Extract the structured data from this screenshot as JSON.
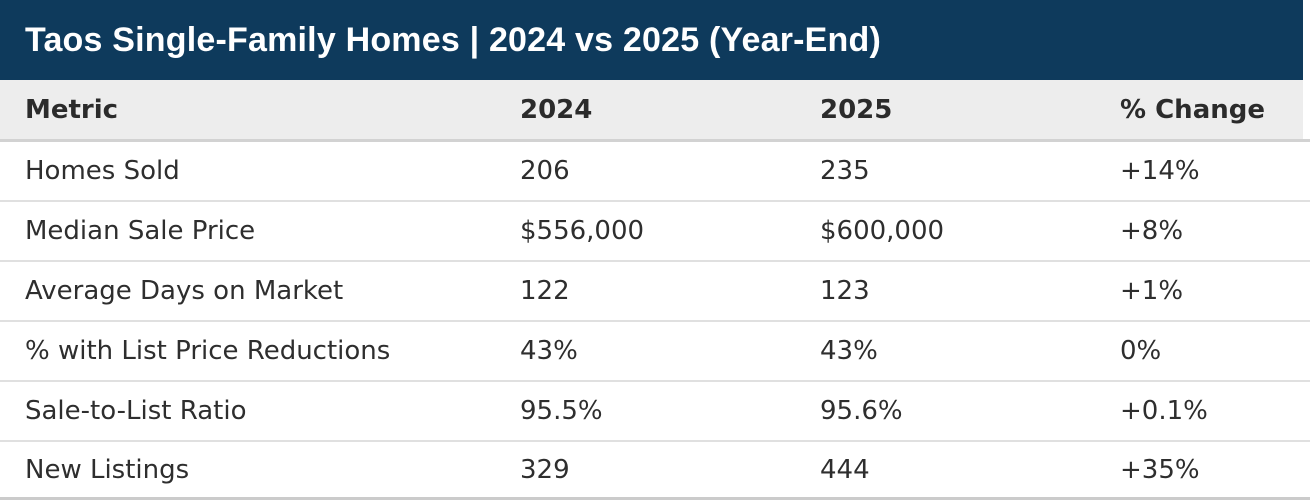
{
  "title": "Taos Single-Family Homes | 2024 vs 2025 (Year-End)",
  "colors": {
    "title_bar_bg": "#0e3a5c",
    "title_text": "#ffffff",
    "header_row_bg": "#ededed",
    "header_text": "#2b2b2b",
    "body_text": "#2e2e2e",
    "divider": "#e0e0e0",
    "header_divider": "#d2d2d2"
  },
  "table": {
    "columns": {
      "metric": "Metric",
      "y2024": "2024",
      "y2025": "2025",
      "change": "% Change"
    },
    "rows": [
      {
        "metric": "Homes Sold",
        "y2024": "206",
        "y2025": "235",
        "change": "+14%"
      },
      {
        "metric": "Median Sale Price",
        "y2024": "$556,000",
        "y2025": "$600,000",
        "change": "+8%"
      },
      {
        "metric": "Average Days on Market",
        "y2024": "122",
        "y2025": "123",
        "change": "+1%"
      },
      {
        "metric": "% with List Price Reductions",
        "y2024": "43%",
        "y2025": "43%",
        "change": "0%"
      },
      {
        "metric": "Sale-to-List Ratio",
        "y2024": "95.5%",
        "y2025": "95.6%",
        "change": "+0.1%"
      },
      {
        "metric": "New Listings",
        "y2024": "329",
        "y2025": "444",
        "change": "+35%"
      }
    ]
  },
  "chart_data": {
    "type": "table",
    "title": "Taos Single-Family Homes | 2024 vs 2025 (Year-End)",
    "columns": [
      "Metric",
      "2024",
      "2025",
      "% Change"
    ],
    "rows": [
      [
        "Homes Sold",
        "206",
        "235",
        "+14%"
      ],
      [
        "Median Sale Price",
        "$556,000",
        "$600,000",
        "+8%"
      ],
      [
        "Average Days on Market",
        "122",
        "123",
        "+1%"
      ],
      [
        "% with List Price Reductions",
        "43%",
        "43%",
        "0%"
      ],
      [
        "Sale-to-List Ratio",
        "95.5%",
        "95.6%",
        "+0.1%"
      ],
      [
        "New Listings",
        "329",
        "444",
        "+35%"
      ]
    ],
    "series": [
      {
        "name": "2024",
        "values": [
          206,
          556000,
          122,
          43,
          95.5,
          329
        ]
      },
      {
        "name": "2025",
        "values": [
          235,
          600000,
          123,
          43,
          95.6,
          444
        ]
      },
      {
        "name": "% Change",
        "values": [
          14,
          8,
          1,
          0,
          0.1,
          35
        ]
      }
    ],
    "categories": [
      "Homes Sold",
      "Median Sale Price",
      "Average Days on Market",
      "% with List Price Reductions",
      "Sale-to-List Ratio",
      "New Listings"
    ]
  }
}
